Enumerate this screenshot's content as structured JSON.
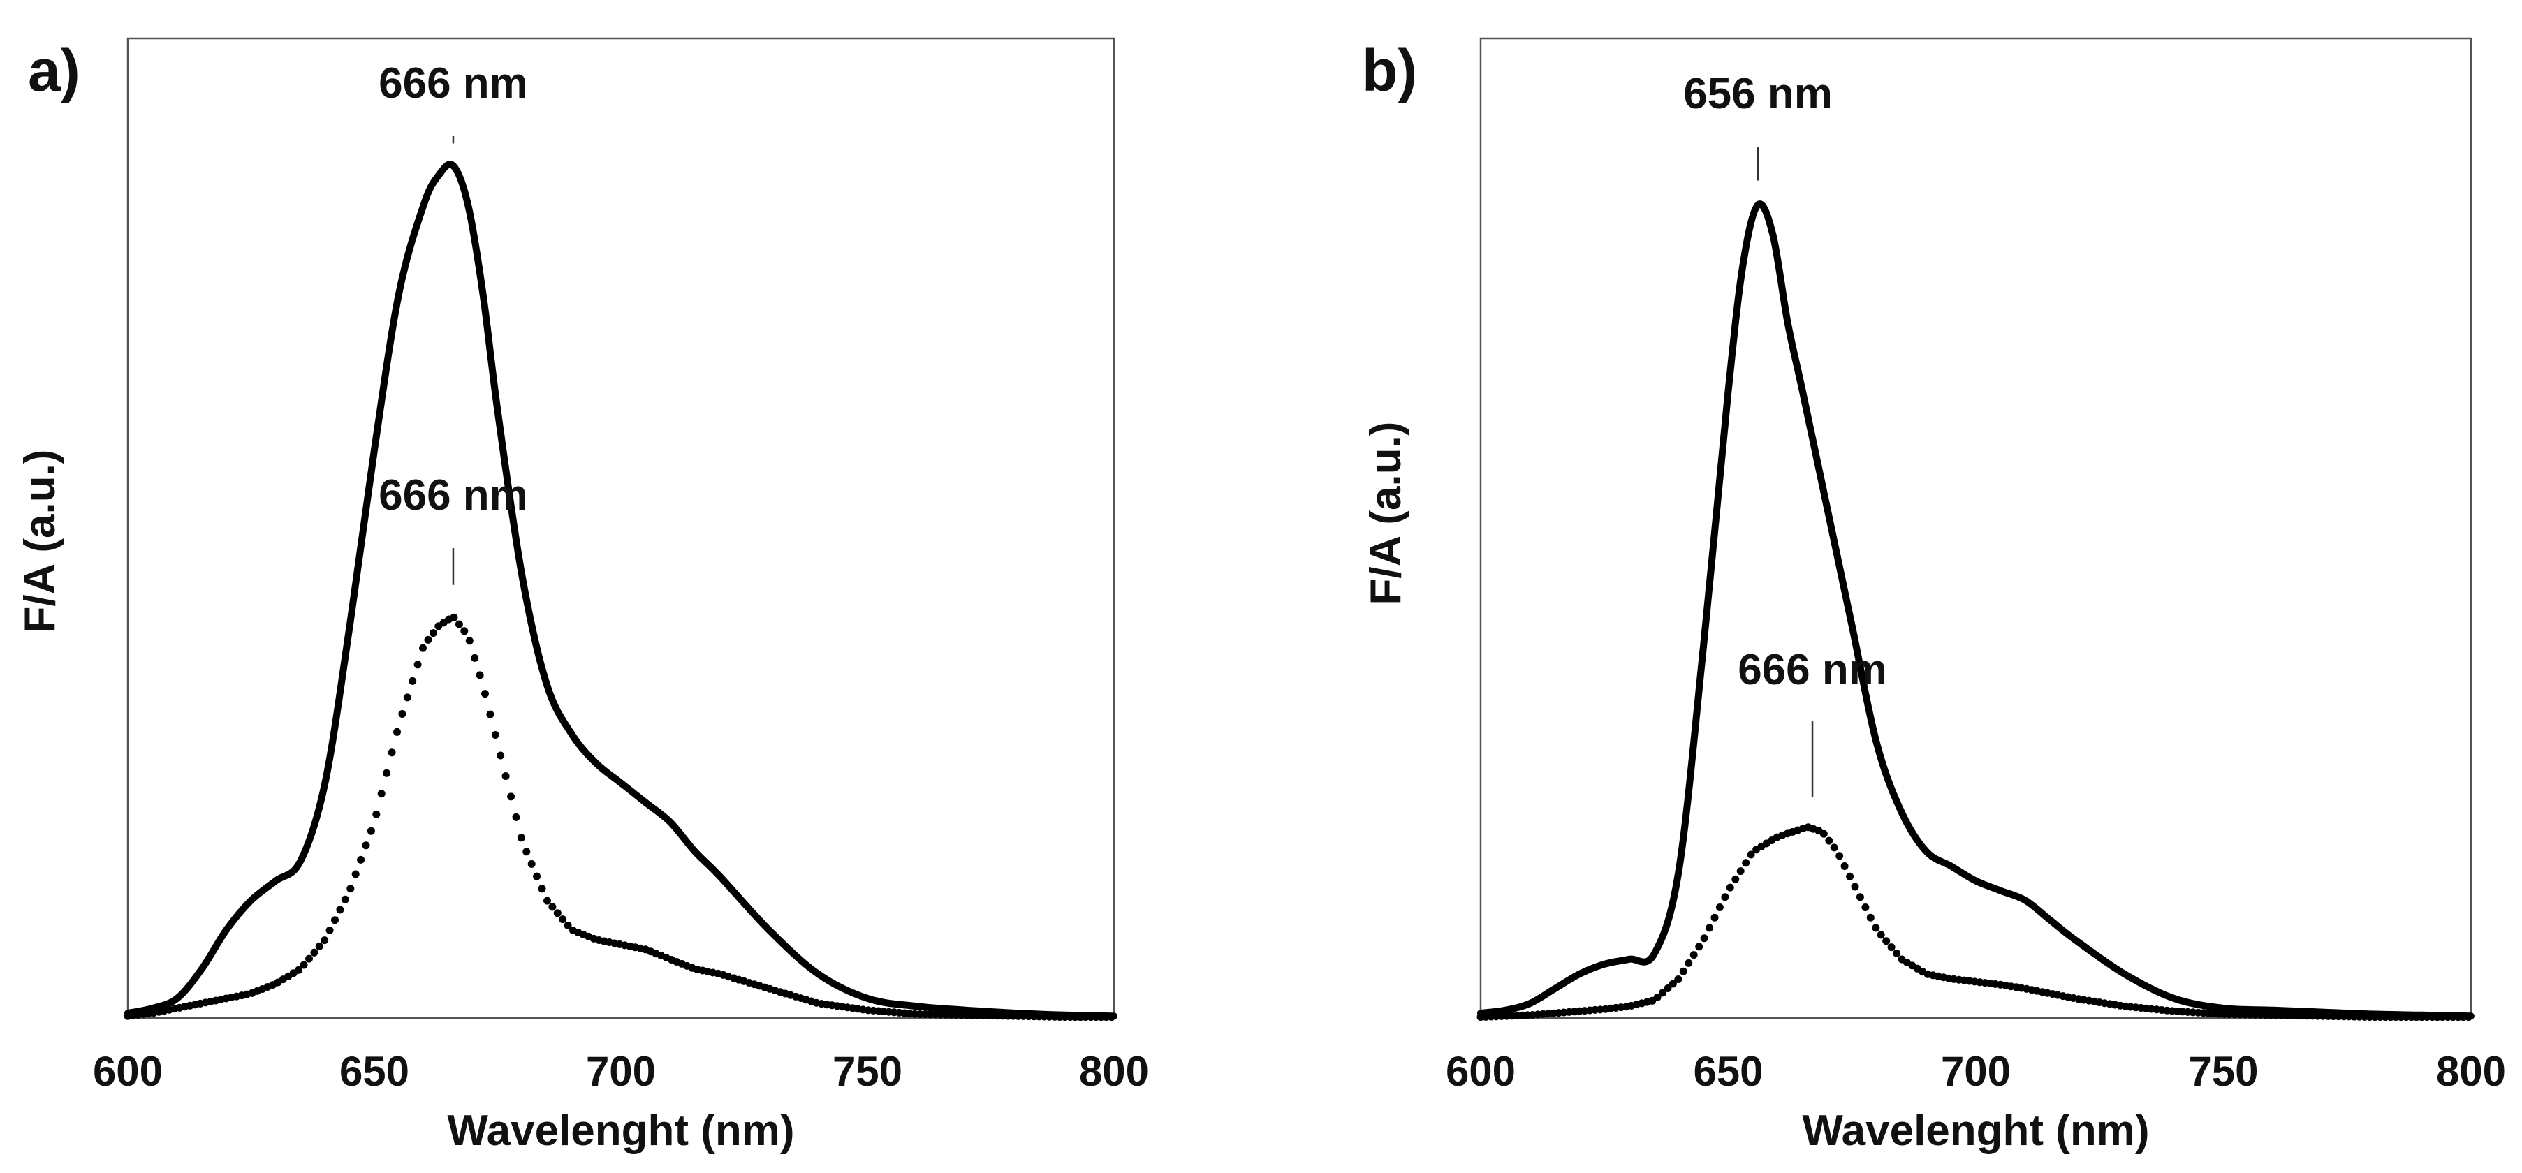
{
  "figure": {
    "panel_count": 2
  },
  "chart_data": [
    {
      "panel": "a)",
      "type": "line",
      "title": "",
      "xlabel": "Wavelenght (nm)",
      "ylabel": "F/A (a.u.)",
      "xlim": [
        600,
        800
      ],
      "ylim": [
        0,
        1.0
      ],
      "xticks": [
        "600",
        "650",
        "700",
        "750",
        "800"
      ],
      "y_tick_labels_shown": false,
      "grid": false,
      "series": [
        {
          "name": "solid",
          "style": "solid",
          "x": [
            600,
            605,
            610,
            615,
            620,
            625,
            630,
            635,
            640,
            645,
            650,
            655,
            660,
            663,
            666,
            669,
            672,
            675,
            680,
            685,
            690,
            695,
            700,
            705,
            710,
            715,
            720,
            730,
            740,
            750,
            760,
            770,
            780,
            790,
            800
          ],
          "y": [
            0.005,
            0.01,
            0.02,
            0.05,
            0.09,
            0.12,
            0.14,
            0.16,
            0.24,
            0.4,
            0.58,
            0.74,
            0.83,
            0.86,
            0.87,
            0.83,
            0.74,
            0.62,
            0.45,
            0.34,
            0.29,
            0.26,
            0.24,
            0.22,
            0.2,
            0.17,
            0.145,
            0.09,
            0.045,
            0.02,
            0.012,
            0.008,
            0.005,
            0.003,
            0.002
          ]
        },
        {
          "name": "dotted",
          "style": "dotted",
          "x": [
            600,
            605,
            610,
            615,
            620,
            625,
            630,
            635,
            640,
            645,
            650,
            655,
            660,
            663,
            666,
            669,
            672,
            675,
            680,
            685,
            690,
            695,
            700,
            705,
            710,
            715,
            720,
            730,
            740,
            750,
            760,
            770,
            780,
            790,
            800
          ],
          "y": [
            0.002,
            0.005,
            0.01,
            0.015,
            0.02,
            0.025,
            0.035,
            0.05,
            0.08,
            0.13,
            0.2,
            0.3,
            0.38,
            0.4,
            0.41,
            0.39,
            0.34,
            0.28,
            0.18,
            0.12,
            0.09,
            0.08,
            0.075,
            0.07,
            0.06,
            0.05,
            0.045,
            0.03,
            0.015,
            0.008,
            0.004,
            0.003,
            0.002,
            0.001,
            0.001
          ]
        }
      ],
      "annotations": [
        {
          "text": "666 nm",
          "x": 666,
          "series": "solid"
        },
        {
          "text": "666 nm",
          "x": 666,
          "series": "dotted"
        }
      ]
    },
    {
      "panel": "b)",
      "type": "line",
      "title": "",
      "xlabel": "Wavelenght (nm)",
      "ylabel": "F/A (a.u.)",
      "xlim": [
        600,
        800
      ],
      "ylim": [
        0,
        1.0
      ],
      "xticks": [
        "600",
        "650",
        "700",
        "750",
        "800"
      ],
      "y_tick_labels_shown": false,
      "grid": false,
      "series": [
        {
          "name": "solid",
          "style": "solid",
          "x": [
            600,
            605,
            610,
            615,
            620,
            625,
            630,
            635,
            640,
            645,
            650,
            653,
            656,
            659,
            662,
            665,
            670,
            675,
            680,
            685,
            690,
            695,
            700,
            705,
            710,
            715,
            720,
            730,
            740,
            750,
            760,
            770,
            780,
            790,
            800
          ],
          "y": [
            0.005,
            0.008,
            0.015,
            0.03,
            0.045,
            0.055,
            0.06,
            0.065,
            0.15,
            0.38,
            0.64,
            0.77,
            0.83,
            0.8,
            0.71,
            0.64,
            0.52,
            0.4,
            0.28,
            0.21,
            0.17,
            0.155,
            0.14,
            0.13,
            0.12,
            0.1,
            0.08,
            0.045,
            0.02,
            0.01,
            0.008,
            0.006,
            0.004,
            0.003,
            0.002
          ]
        },
        {
          "name": "dotted",
          "style": "dotted",
          "x": [
            600,
            605,
            610,
            615,
            620,
            625,
            630,
            635,
            640,
            645,
            650,
            655,
            660,
            663,
            666,
            669,
            672,
            675,
            680,
            685,
            690,
            695,
            700,
            705,
            710,
            715,
            720,
            730,
            740,
            750,
            760,
            770,
            780,
            790,
            800
          ],
          "y": [
            0.001,
            0.002,
            0.003,
            0.005,
            0.007,
            0.009,
            0.012,
            0.018,
            0.04,
            0.08,
            0.13,
            0.17,
            0.185,
            0.19,
            0.195,
            0.19,
            0.17,
            0.14,
            0.09,
            0.06,
            0.045,
            0.04,
            0.037,
            0.034,
            0.03,
            0.025,
            0.02,
            0.012,
            0.007,
            0.004,
            0.003,
            0.002,
            0.001,
            0.001,
            0.001
          ]
        }
      ],
      "annotations": [
        {
          "text": "656 nm",
          "x": 656,
          "series": "solid"
        },
        {
          "text": "666 nm",
          "x": 667,
          "series": "dotted"
        }
      ]
    }
  ]
}
